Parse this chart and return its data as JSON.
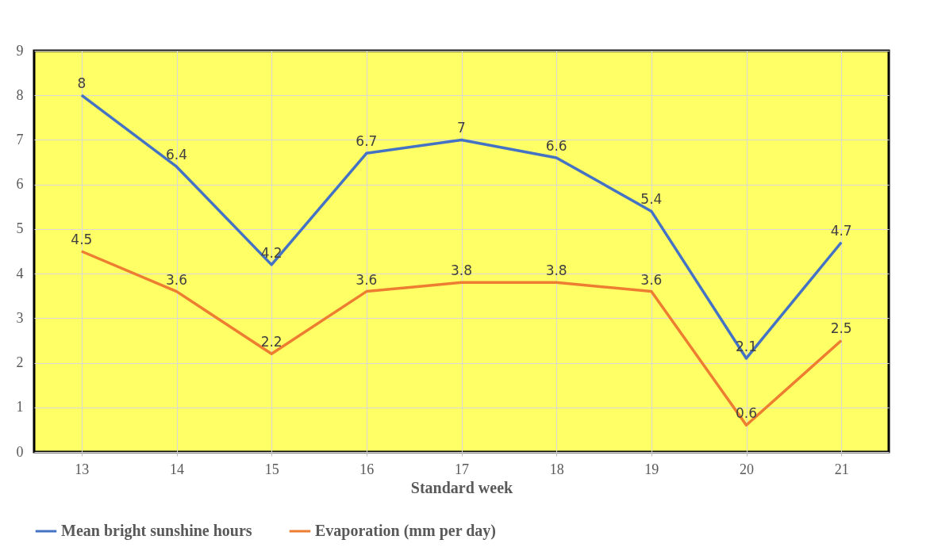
{
  "chart_data": {
    "type": "line",
    "xlabel": "Standard week",
    "categories": [
      "13",
      "14",
      "15",
      "16",
      "17",
      "18",
      "19",
      "20",
      "21"
    ],
    "series": [
      {
        "name": "Mean bright sunshine hours",
        "color": "#4472c4",
        "values": [
          8,
          6.4,
          4.2,
          6.7,
          7,
          6.6,
          5.4,
          2.1,
          4.7
        ]
      },
      {
        "name": "Evaporation  (mm per day)",
        "color": "#ed7d31",
        "values": [
          4.5,
          3.6,
          2.2,
          3.6,
          3.8,
          3.8,
          3.6,
          0.6,
          2.5
        ]
      }
    ],
    "ylim": [
      0,
      9
    ],
    "yticks": [
      0,
      1,
      2,
      3,
      4,
      5,
      6,
      7,
      8,
      9
    ],
    "grid": true,
    "legend": "bottom",
    "data_labels": true,
    "marker": "none",
    "line_style": "solid"
  }
}
